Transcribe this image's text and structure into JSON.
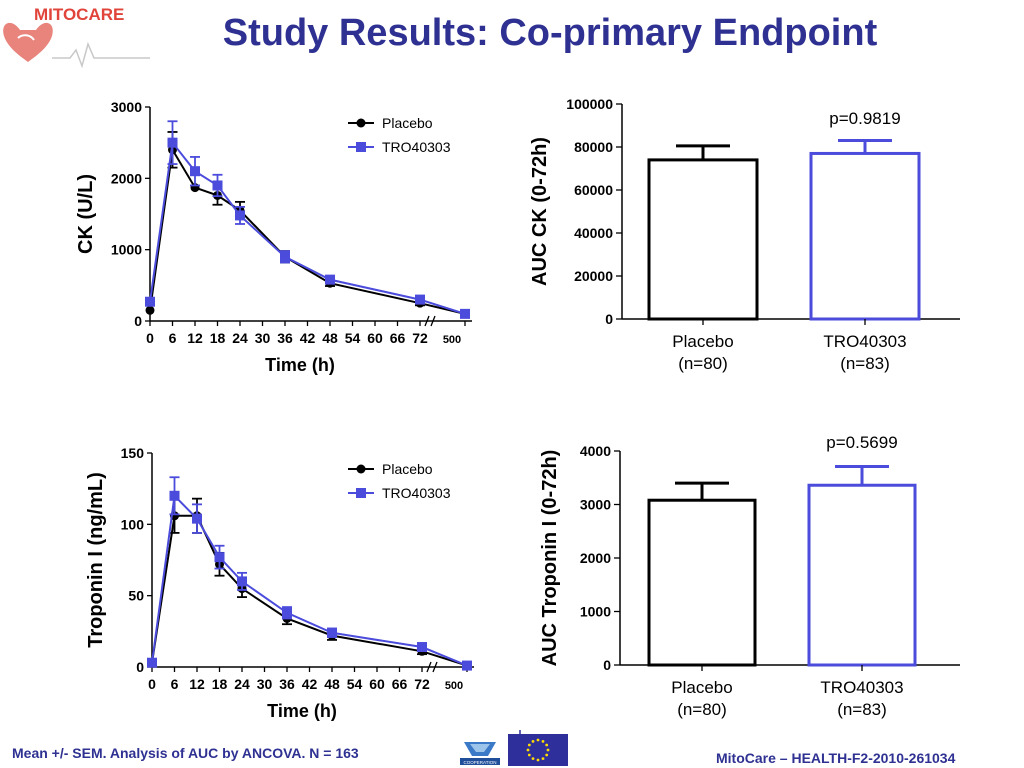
{
  "header": {
    "logo_text": "MITOCARE",
    "title": "Study Results: Co-primary Endpoint"
  },
  "footer": {
    "left": "Mean +/- SEM. Analysis of AUC by ANCOVA. N = 163",
    "right": "MitoCare – HEALTH-F2-2010-261034",
    "coop_label": "COOPERATION"
  },
  "colors": {
    "placebo": "#000000",
    "tro": "#4b4bdc",
    "title": "#2e3192"
  },
  "chart_data": [
    {
      "type": "line",
      "ylabel": "CK (U/L)",
      "xlabel": "Time (h)",
      "x_ticks": [
        "0",
        "6",
        "12",
        "18",
        "24",
        "30",
        "36",
        "42",
        "48",
        "54",
        "60",
        "66",
        "72",
        "500"
      ],
      "y_ticks": [
        "0",
        "1000",
        "2000",
        "3000"
      ],
      "ylim": [
        0,
        3000
      ],
      "legend_position": "top-right",
      "x_axis_break": "between 72 and 500",
      "series": [
        {
          "name": "Placebo",
          "marker": "circle",
          "points": [
            {
              "x": "0",
              "y": 150,
              "err": 0
            },
            {
              "x": "6",
              "y": 2400,
              "err": 250
            },
            {
              "x": "12",
              "y": 1870,
              "err": 0
            },
            {
              "x": "18",
              "y": 1760,
              "err": 130
            },
            {
              "x": "24",
              "y": 1550,
              "err": 120
            },
            {
              "x": "36",
              "y": 900,
              "err": 80
            },
            {
              "x": "48",
              "y": 530,
              "err": 40
            },
            {
              "x": "72",
              "y": 250,
              "err": 30
            },
            {
              "x": "500",
              "y": 100,
              "err": 0
            }
          ]
        },
        {
          "name": "TRO40303",
          "marker": "square",
          "points": [
            {
              "x": "0",
              "y": 270,
              "err": 0
            },
            {
              "x": "6",
              "y": 2500,
              "err": 300
            },
            {
              "x": "12",
              "y": 2100,
              "err": 200
            },
            {
              "x": "18",
              "y": 1900,
              "err": 150
            },
            {
              "x": "24",
              "y": 1480,
              "err": 120
            },
            {
              "x": "36",
              "y": 900,
              "err": 80
            },
            {
              "x": "48",
              "y": 580,
              "err": 40
            },
            {
              "x": "72",
              "y": 300,
              "err": 30
            },
            {
              "x": "500",
              "y": 100,
              "err": 0
            }
          ]
        }
      ]
    },
    {
      "type": "bar",
      "ylabel": "AUC CK (0-72h)",
      "categories": [
        "Placebo",
        "TRO40303"
      ],
      "category_n": [
        "(n=80)",
        "(n=83)"
      ],
      "values": [
        74000,
        77000
      ],
      "errors": [
        6500,
        6000
      ],
      "y_ticks": [
        "0",
        "20000",
        "40000",
        "60000",
        "80000",
        "100000"
      ],
      "ylim": [
        0,
        100000
      ],
      "annotation": "p=0.9819"
    },
    {
      "type": "line",
      "ylabel": "Troponin I (ng/mL)",
      "xlabel": "Time (h)",
      "x_ticks": [
        "0",
        "6",
        "12",
        "18",
        "24",
        "30",
        "36",
        "42",
        "48",
        "54",
        "60",
        "66",
        "72",
        "500"
      ],
      "y_ticks": [
        "0",
        "50",
        "100",
        "150"
      ],
      "ylim": [
        0,
        150
      ],
      "legend_position": "top-right",
      "x_axis_break": "between 72 and 500",
      "series": [
        {
          "name": "Placebo",
          "marker": "circle",
          "points": [
            {
              "x": "0",
              "y": 3,
              "err": 0
            },
            {
              "x": "6",
              "y": 106,
              "err": 12
            },
            {
              "x": "12",
              "y": 106,
              "err": 12
            },
            {
              "x": "18",
              "y": 72,
              "err": 8
            },
            {
              "x": "24",
              "y": 55,
              "err": 6
            },
            {
              "x": "36",
              "y": 34,
              "err": 4
            },
            {
              "x": "48",
              "y": 22,
              "err": 3
            },
            {
              "x": "72",
              "y": 11,
              "err": 2
            },
            {
              "x": "500",
              "y": 1,
              "err": 0
            }
          ]
        },
        {
          "name": "TRO40303",
          "marker": "square",
          "points": [
            {
              "x": "0",
              "y": 3,
              "err": 0
            },
            {
              "x": "6",
              "y": 120,
              "err": 13
            },
            {
              "x": "12",
              "y": 104,
              "err": 10
            },
            {
              "x": "18",
              "y": 77,
              "err": 8
            },
            {
              "x": "24",
              "y": 60,
              "err": 6
            },
            {
              "x": "36",
              "y": 38,
              "err": 4
            },
            {
              "x": "48",
              "y": 24,
              "err": 3
            },
            {
              "x": "72",
              "y": 14,
              "err": 2
            },
            {
              "x": "500",
              "y": 1,
              "err": 0
            }
          ]
        }
      ]
    },
    {
      "type": "bar",
      "ylabel": "AUC Troponin I (0-72h)",
      "categories": [
        "Placebo",
        "TRO40303"
      ],
      "category_n": [
        "(n=80)",
        "(n=83)"
      ],
      "values": [
        3080,
        3360
      ],
      "errors": [
        320,
        350
      ],
      "y_ticks": [
        "0",
        "1000",
        "2000",
        "3000",
        "4000"
      ],
      "ylim": [
        0,
        4000
      ],
      "annotation": "p=0.5699"
    }
  ]
}
